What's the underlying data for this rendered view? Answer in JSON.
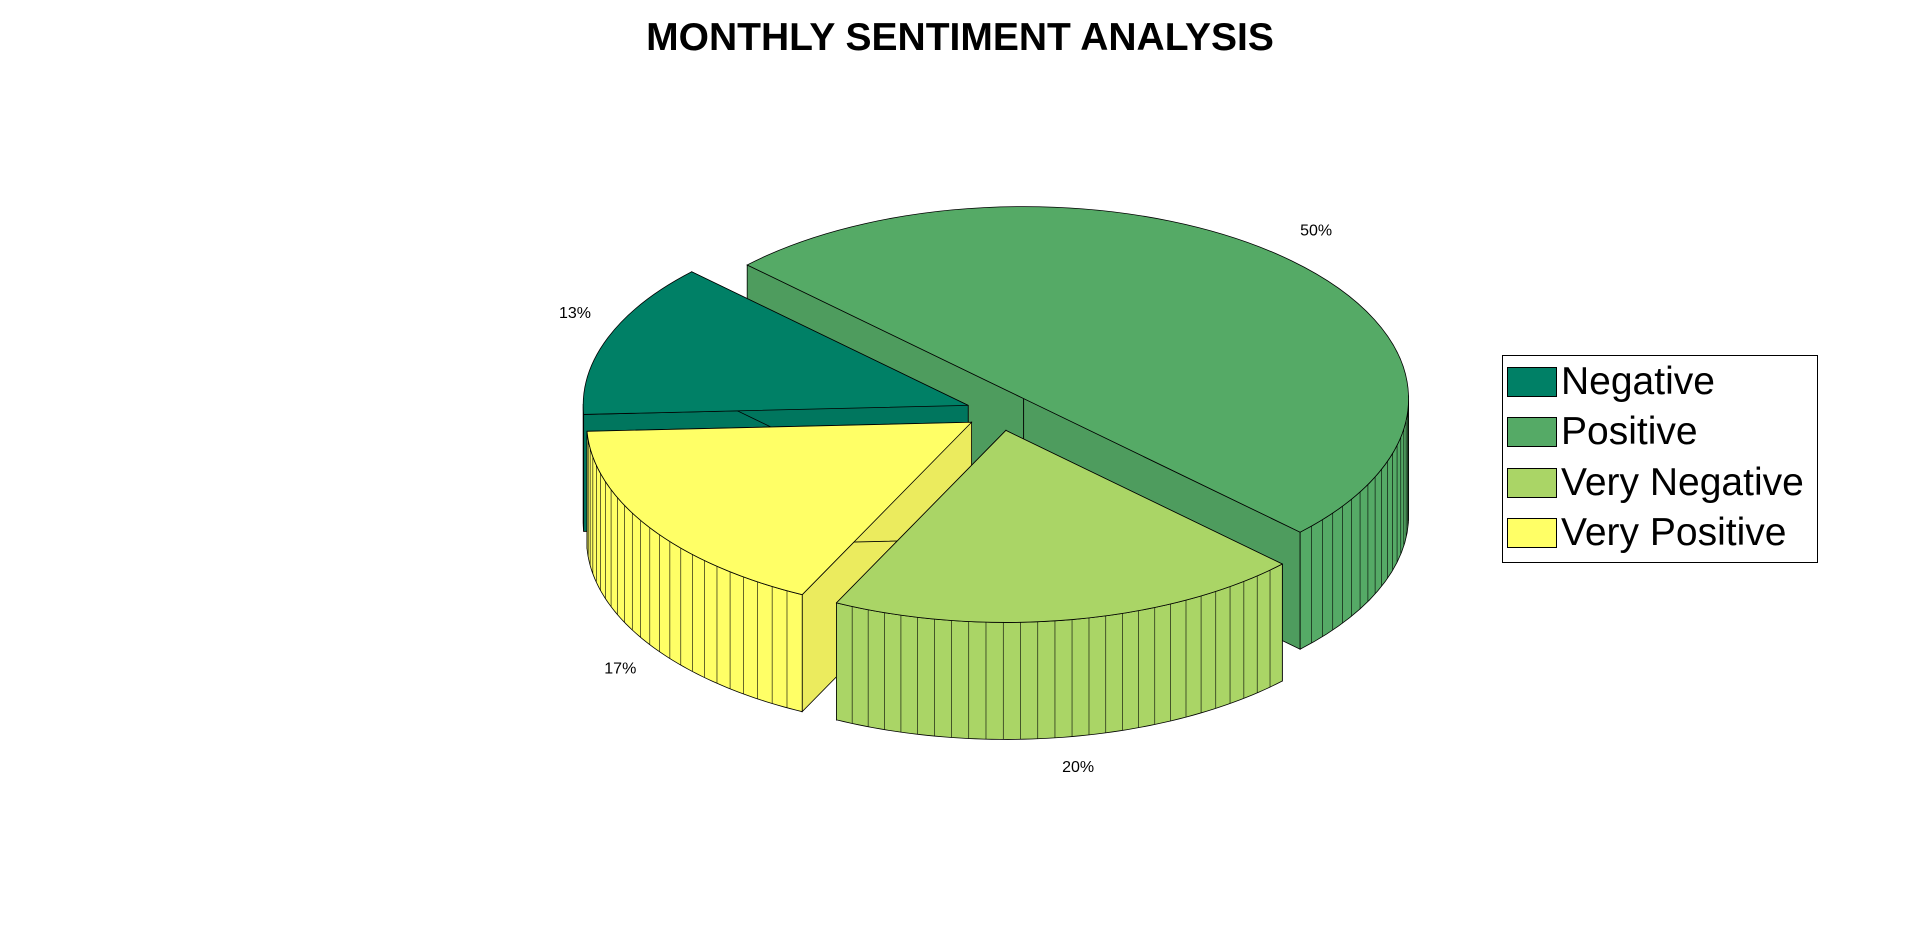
{
  "chart_data": {
    "type": "pie",
    "title": "MONTHLY SENTIMENT ANALYSIS",
    "slices": [
      {
        "label": "Negative",
        "value": 13,
        "percent_label": "13%",
        "color": "#008066"
      },
      {
        "label": "Positive",
        "value": 50,
        "percent_label": "50%",
        "color": "#55AA66"
      },
      {
        "label": "Very Negative",
        "value": 20,
        "percent_label": "20%",
        "color": "#AAD566"
      },
      {
        "label": "Very Positive",
        "value": 17,
        "percent_label": "17%",
        "color": "#FFFF66"
      }
    ],
    "style": "3d-exploded",
    "legend_position": "right"
  }
}
